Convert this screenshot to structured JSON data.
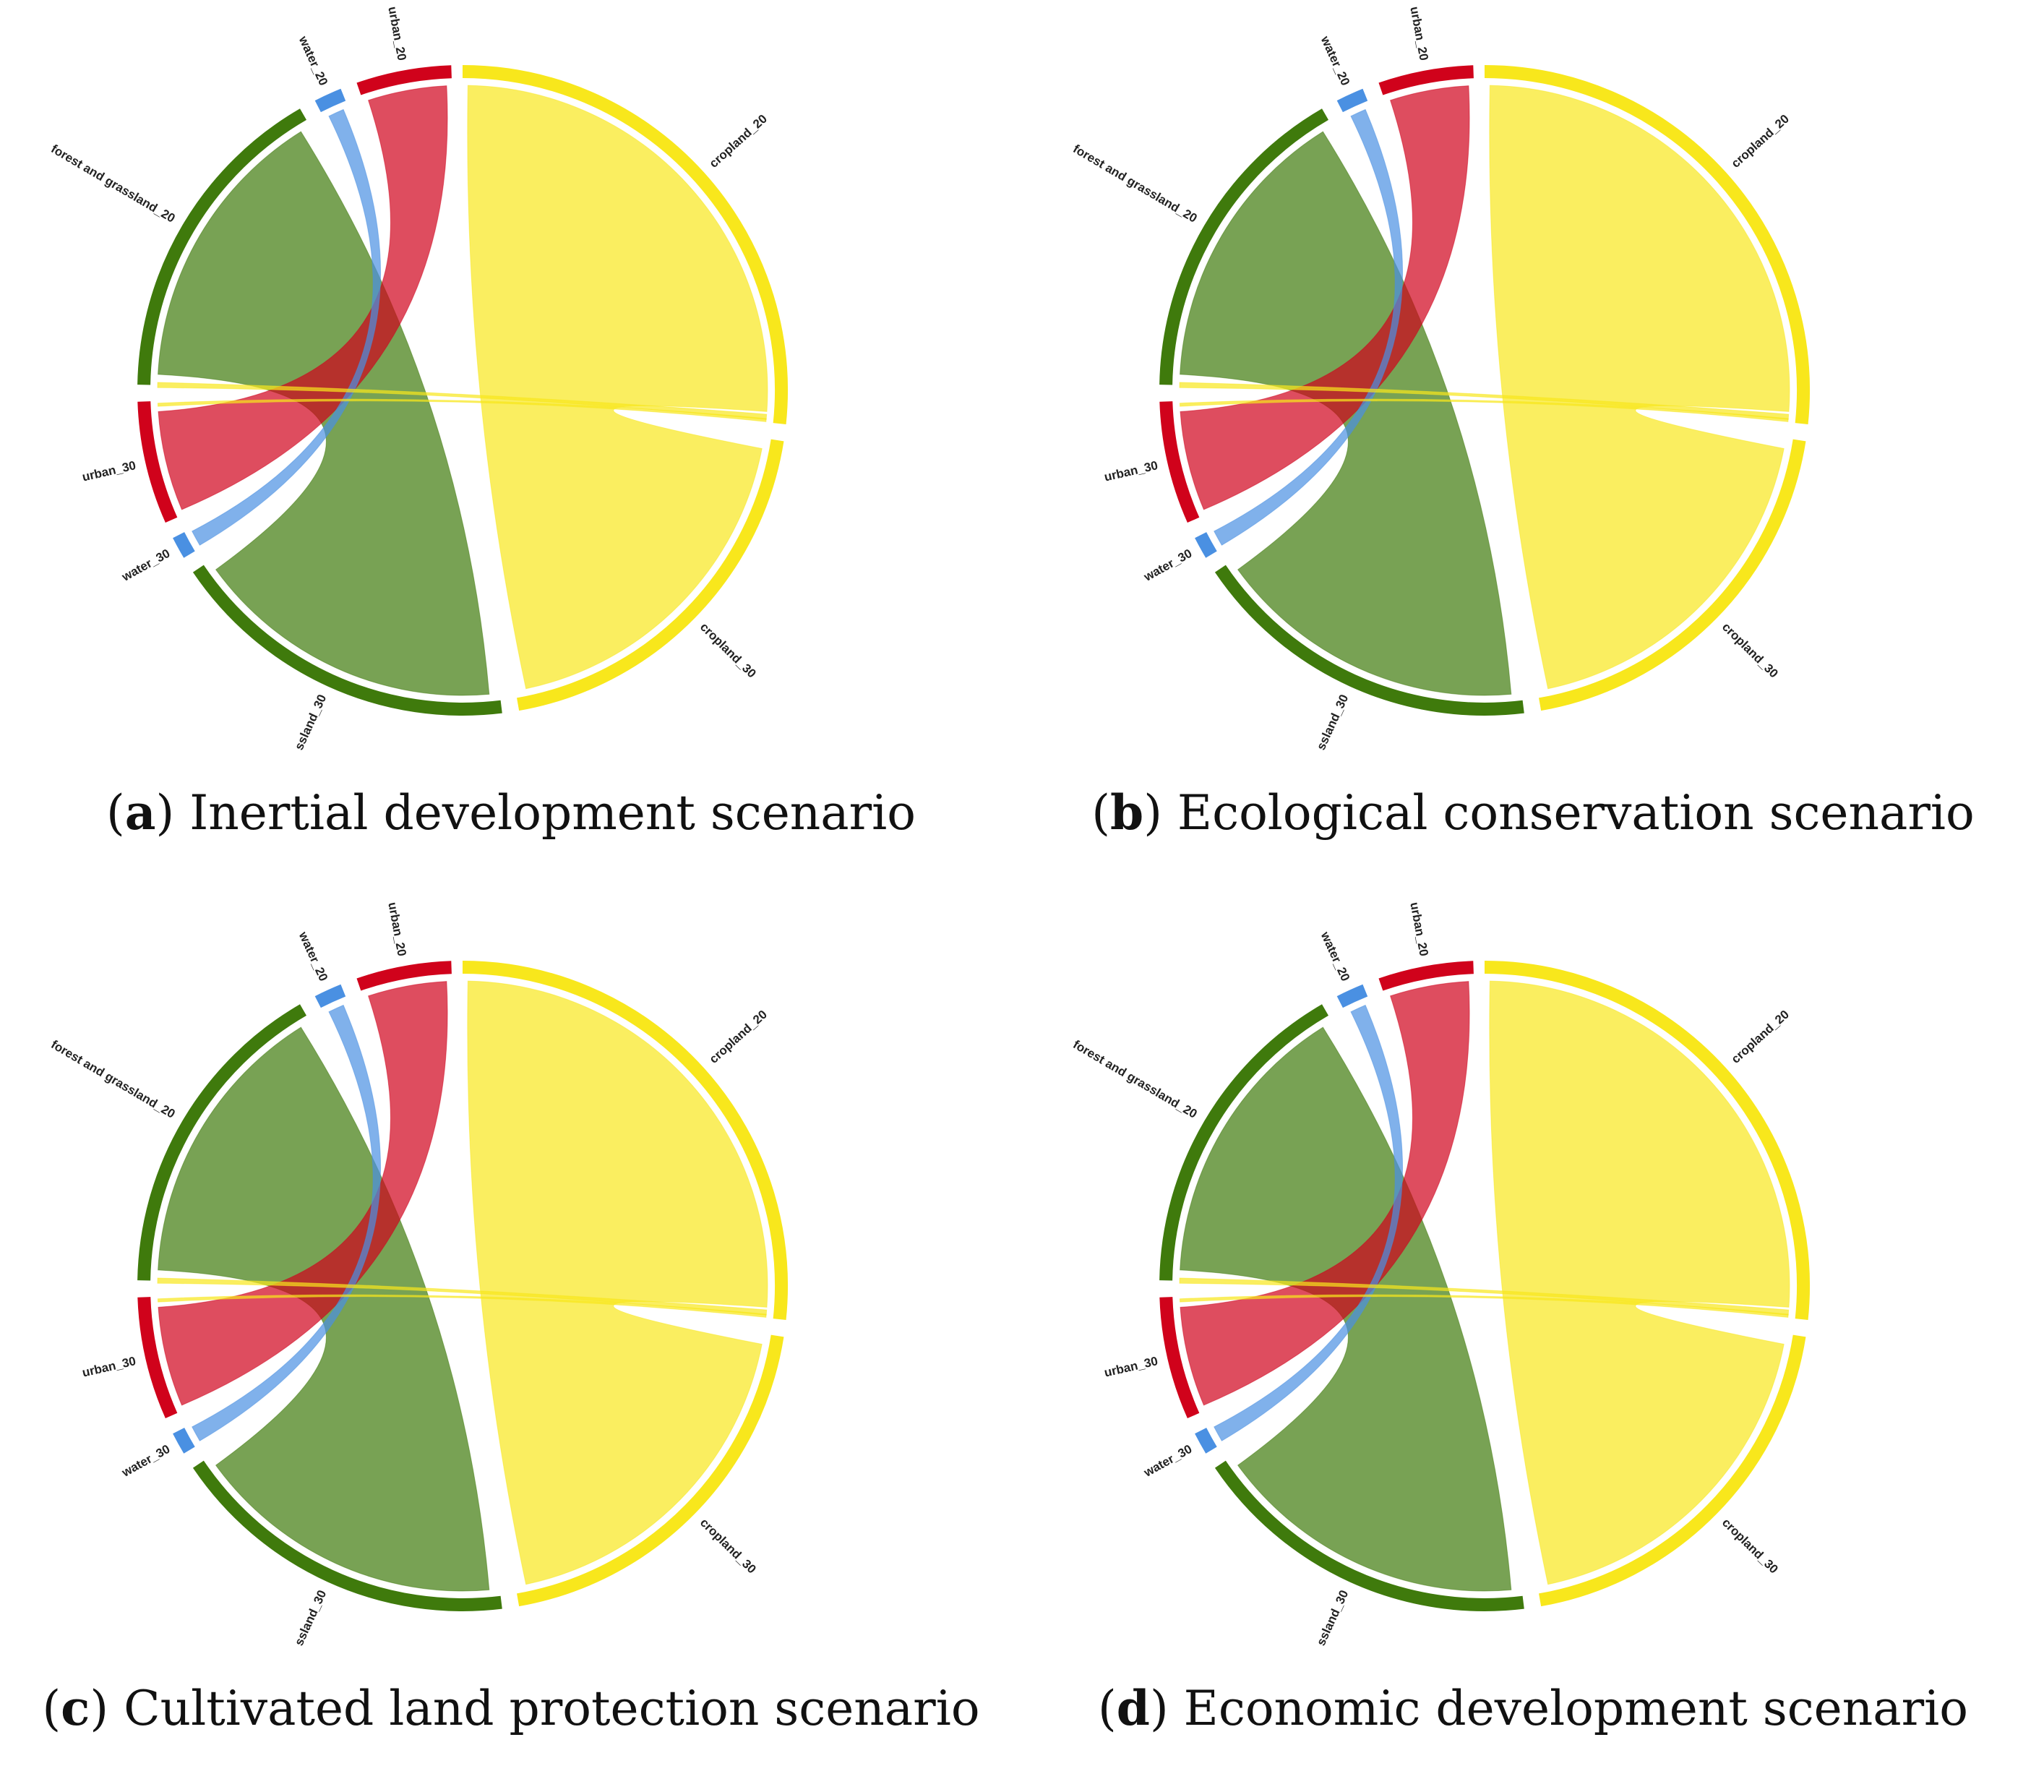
{
  "colors": {
    "cropland": "#f8e71c",
    "forest and grassland": "#3f7a0c",
    "urban": "#d0021b",
    "water": "#4a90e2"
  },
  "panels": [
    {
      "letter": "a",
      "caption": "Inertial development scenario",
      "node_labels": {
        "cropland_20": "cropland_20",
        "forest_20": "forest and grassland_20",
        "urban_20": "urban_20",
        "water_20": "water_20",
        "cropland_30": "cropland_30",
        "forest_30": "ssland_30",
        "urban_30": "urban_30",
        "water_30": "water_30"
      }
    },
    {
      "letter": "b",
      "caption": "Ecological conservation scenario",
      "node_labels": {
        "cropland_20": "cropland_20",
        "forest_20": "forest and grassland_20",
        "urban_20": "urban_20",
        "water_20": "water_20",
        "cropland_30": "cropland_30",
        "forest_30": "ssland_30",
        "urban_30": "urban_30",
        "water_30": "water_30"
      }
    },
    {
      "letter": "c",
      "caption": "Cultivated land protection scenario",
      "node_labels": {
        "cropland_20": "cropland_20",
        "forest_20": "forest and grassland_20",
        "urban_20": "urban_20",
        "water_20": "water_20",
        "cropland_30": "cropland_30",
        "forest_30": "ssland_30",
        "urban_30": "urban_30",
        "water_30": "water_30"
      }
    },
    {
      "letter": "d",
      "caption": "Economic development scenario",
      "node_labels": {
        "cropland_20": "cropland_20",
        "forest_20": "forest and grassland_20",
        "urban_20": "urban_20",
        "water_20": "water_20",
        "cropland_30": "cropland_30",
        "forest_30": "ssland_30",
        "urban_30": "urban_30",
        "water_30": "water_30"
      }
    }
  ]
}
